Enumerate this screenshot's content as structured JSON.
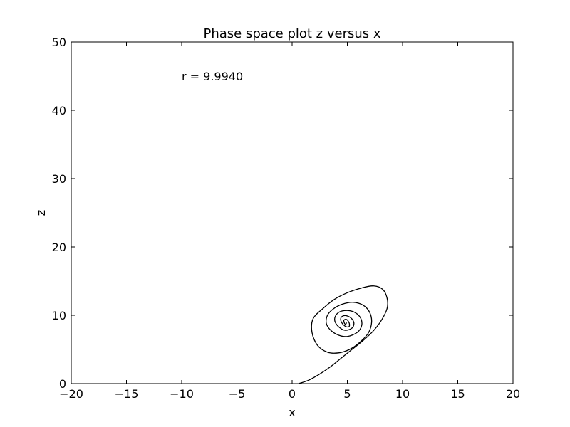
{
  "chart_data": {
    "type": "line",
    "title": "Phase space plot  z versus x",
    "xlabel": "x",
    "ylabel": "z",
    "xlim": [
      -20,
      20
    ],
    "ylim": [
      0,
      50
    ],
    "xticks": [
      -20,
      -15,
      -10,
      -5,
      0,
      5,
      10,
      15,
      20
    ],
    "xtick_labels": [
      "−20",
      "−15",
      "−10",
      "−5",
      "0",
      "5",
      "10",
      "15",
      "20"
    ],
    "yticks": [
      0,
      10,
      20,
      30,
      40,
      50
    ],
    "ytick_labels": [
      "0",
      "10",
      "20",
      "30",
      "40",
      "50"
    ],
    "grid": false,
    "line_color": "#000000",
    "annotation": {
      "text": "r = 9.9940",
      "x": -10,
      "y": 45
    },
    "series": [
      {
        "x": [
          0.6,
          1.5,
          2.5,
          3.5,
          4.5,
          5.5,
          6.5,
          7.4,
          8.1,
          8.6,
          8.6,
          8.2,
          7.4,
          6.3,
          5.0,
          3.8,
          2.8,
          1.9,
          1.8,
          2.3,
          3.2,
          4.2,
          5.2,
          6.1,
          6.9,
          7.2,
          7.0,
          6.4,
          5.5,
          4.5,
          3.7,
          3.2,
          3.1,
          3.5,
          4.2,
          5.0,
          5.9,
          6.3,
          6.2,
          5.7,
          5.0,
          4.3,
          3.9,
          3.9,
          4.3,
          4.8,
          5.4,
          5.6,
          5.4,
          5.0,
          4.6,
          4.4,
          4.5,
          4.8,
          5.1,
          5.2,
          5.1,
          4.9,
          4.7,
          4.7,
          4.8,
          4.9,
          4.9
        ],
        "y": [
          0.0,
          0.5,
          1.4,
          2.5,
          3.8,
          5.1,
          6.4,
          7.8,
          9.3,
          11.0,
          12.5,
          13.8,
          14.3,
          14.0,
          13.3,
          12.3,
          11.0,
          9.5,
          7.5,
          5.6,
          4.6,
          4.5,
          5.0,
          6.0,
          7.4,
          9.0,
          10.5,
          11.5,
          11.9,
          11.6,
          10.9,
          10.0,
          8.8,
          7.8,
          7.1,
          6.9,
          7.5,
          8.5,
          9.6,
          10.4,
          10.7,
          10.5,
          9.8,
          9.0,
          8.2,
          7.8,
          8.1,
          8.8,
          9.5,
          9.9,
          9.9,
          9.5,
          8.9,
          8.4,
          8.3,
          8.6,
          9.1,
          9.4,
          9.3,
          9.0,
          8.7,
          8.8,
          9.0
        ]
      }
    ]
  }
}
